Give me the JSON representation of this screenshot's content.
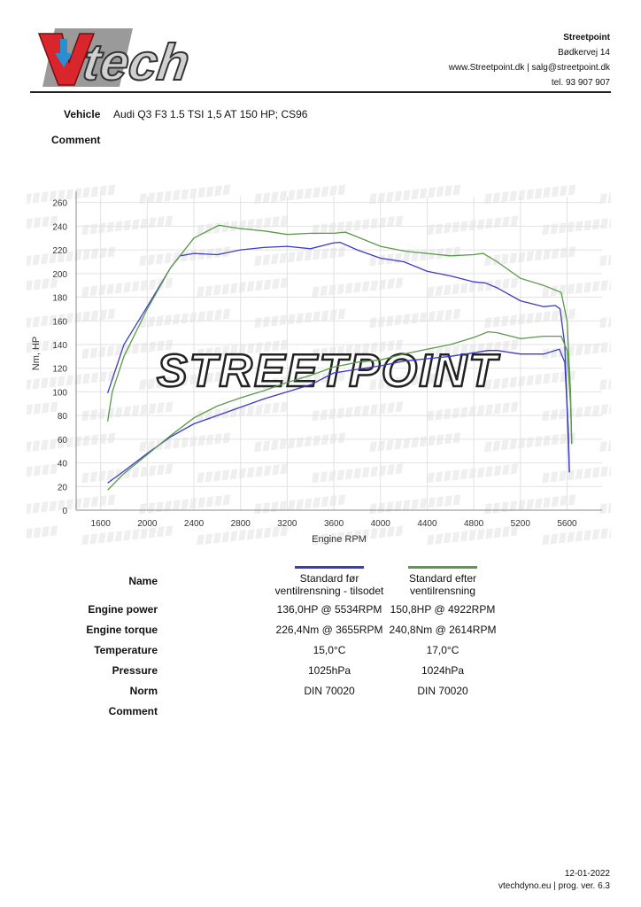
{
  "header": {
    "logo_text": "V-tech",
    "company": "Streetpoint",
    "address": "Bødkervej 14",
    "web_mail": "www.Streetpoint.dk | salg@streetpoint.dk",
    "phone": "tel. 93 907 907"
  },
  "vehicle": {
    "label": "Vehicle",
    "value": "Audi Q3 F3 1.5 TSI 1,5 AT 150 HP; CS96"
  },
  "comment": {
    "label": "Comment"
  },
  "watermark": "STREETPOINT",
  "chart_data": {
    "type": "line",
    "xlabel": "Engine RPM",
    "ylabel": "Nm, HP",
    "xlim": [
      1390,
      5900
    ],
    "ylim": [
      0,
      265
    ],
    "xticks": [
      1600,
      2000,
      2400,
      2800,
      3200,
      3600,
      4000,
      4400,
      4800,
      5200,
      5600
    ],
    "yticks": [
      0,
      20,
      40,
      60,
      80,
      100,
      120,
      140,
      160,
      180,
      200,
      220,
      240,
      260
    ],
    "grid": true,
    "legend": "table-below",
    "series": [
      {
        "name": "Standard før ventilrensning - tilsodet",
        "quantity": "torque",
        "color": "#3a3ac8",
        "points": [
          [
            1660,
            99
          ],
          [
            1800,
            140
          ],
          [
            2000,
            172
          ],
          [
            2200,
            205
          ],
          [
            2280,
            215
          ],
          [
            2400,
            217
          ],
          [
            2600,
            216
          ],
          [
            2800,
            220
          ],
          [
            3000,
            222
          ],
          [
            3200,
            223
          ],
          [
            3400,
            221
          ],
          [
            3600,
            226
          ],
          [
            3655,
            226.4
          ],
          [
            3800,
            220
          ],
          [
            4000,
            213
          ],
          [
            4200,
            210
          ],
          [
            4400,
            202
          ],
          [
            4600,
            198
          ],
          [
            4800,
            193
          ],
          [
            4900,
            192
          ],
          [
            5000,
            188
          ],
          [
            5200,
            177
          ],
          [
            5400,
            172
          ],
          [
            5500,
            173
          ],
          [
            5540,
            170
          ],
          [
            5580,
            140
          ],
          [
            5610,
            60
          ],
          [
            5620,
            32
          ]
        ]
      },
      {
        "name": "Standard efter ventilrensning",
        "quantity": "torque",
        "color": "#5a9a4a",
        "points": [
          [
            1660,
            75
          ],
          [
            1700,
            100
          ],
          [
            1800,
            130
          ],
          [
            2000,
            170
          ],
          [
            2200,
            205
          ],
          [
            2400,
            230
          ],
          [
            2614,
            240.8
          ],
          [
            2800,
            238
          ],
          [
            3000,
            236
          ],
          [
            3200,
            233
          ],
          [
            3400,
            234
          ],
          [
            3600,
            234
          ],
          [
            3700,
            235
          ],
          [
            3800,
            231
          ],
          [
            4000,
            223
          ],
          [
            4200,
            219
          ],
          [
            4400,
            217
          ],
          [
            4600,
            215
          ],
          [
            4800,
            216
          ],
          [
            4880,
            217
          ],
          [
            5000,
            210
          ],
          [
            5200,
            196
          ],
          [
            5400,
            190
          ],
          [
            5550,
            184
          ],
          [
            5600,
            160
          ],
          [
            5630,
            100
          ],
          [
            5640,
            56
          ]
        ]
      },
      {
        "name": "Standard før ventilrensning - tilsodet",
        "quantity": "power",
        "color": "#3a3ac8",
        "points": [
          [
            1660,
            23
          ],
          [
            1800,
            33
          ],
          [
            2000,
            48
          ],
          [
            2200,
            62
          ],
          [
            2400,
            73
          ],
          [
            2600,
            80
          ],
          [
            2800,
            87
          ],
          [
            3000,
            94
          ],
          [
            3200,
            100
          ],
          [
            3400,
            106
          ],
          [
            3600,
            116
          ],
          [
            3800,
            119
          ],
          [
            4000,
            122
          ],
          [
            4200,
            126
          ],
          [
            4400,
            128
          ],
          [
            4600,
            130
          ],
          [
            4800,
            133
          ],
          [
            4922,
            135
          ],
          [
            5000,
            135
          ],
          [
            5200,
            132
          ],
          [
            5400,
            132
          ],
          [
            5534,
            136
          ],
          [
            5580,
            125
          ],
          [
            5610,
            70
          ],
          [
            5620,
            32
          ]
        ]
      },
      {
        "name": "Standard efter ventilrensning",
        "quantity": "power",
        "color": "#5a9a4a",
        "points": [
          [
            1660,
            17
          ],
          [
            1800,
            31
          ],
          [
            2000,
            47
          ],
          [
            2200,
            63
          ],
          [
            2400,
            78
          ],
          [
            2600,
            88
          ],
          [
            2800,
            95
          ],
          [
            3000,
            101
          ],
          [
            3200,
            108
          ],
          [
            3400,
            114
          ],
          [
            3600,
            121
          ],
          [
            3800,
            125
          ],
          [
            4000,
            127
          ],
          [
            4200,
            132
          ],
          [
            4400,
            136
          ],
          [
            4600,
            140
          ],
          [
            4800,
            146
          ],
          [
            4922,
            150.8
          ],
          [
            5000,
            150
          ],
          [
            5200,
            145
          ],
          [
            5400,
            147
          ],
          [
            5550,
            147
          ],
          [
            5600,
            135
          ],
          [
            5630,
            90
          ],
          [
            5640,
            56
          ]
        ]
      }
    ]
  },
  "results": {
    "colors": [
      "#3a3ac8",
      "#5a9a4a"
    ],
    "rows": [
      {
        "label": "Name",
        "values": [
          "Standard før ventilrensning - tilsodet",
          "Standard efter ventilrensning"
        ]
      },
      {
        "label": "Engine power",
        "values": [
          "136,0HP @ 5534RPM",
          "150,8HP @ 4922RPM"
        ]
      },
      {
        "label": "Engine torque",
        "values": [
          "226,4Nm @ 3655RPM",
          "240,8Nm @ 2614RPM"
        ]
      },
      {
        "label": "Temperature",
        "values": [
          "15,0°C",
          "17,0°C"
        ]
      },
      {
        "label": "Pressure",
        "values": [
          "1025hPa",
          "1024hPa"
        ]
      },
      {
        "label": "Norm",
        "values": [
          "DIN 70020",
          "DIN 70020"
        ]
      },
      {
        "label": "Comment",
        "values": [
          "",
          ""
        ]
      }
    ]
  },
  "footer": {
    "date": "12-01-2022",
    "version": "vtechdyno.eu | prog. ver. 6.3"
  }
}
